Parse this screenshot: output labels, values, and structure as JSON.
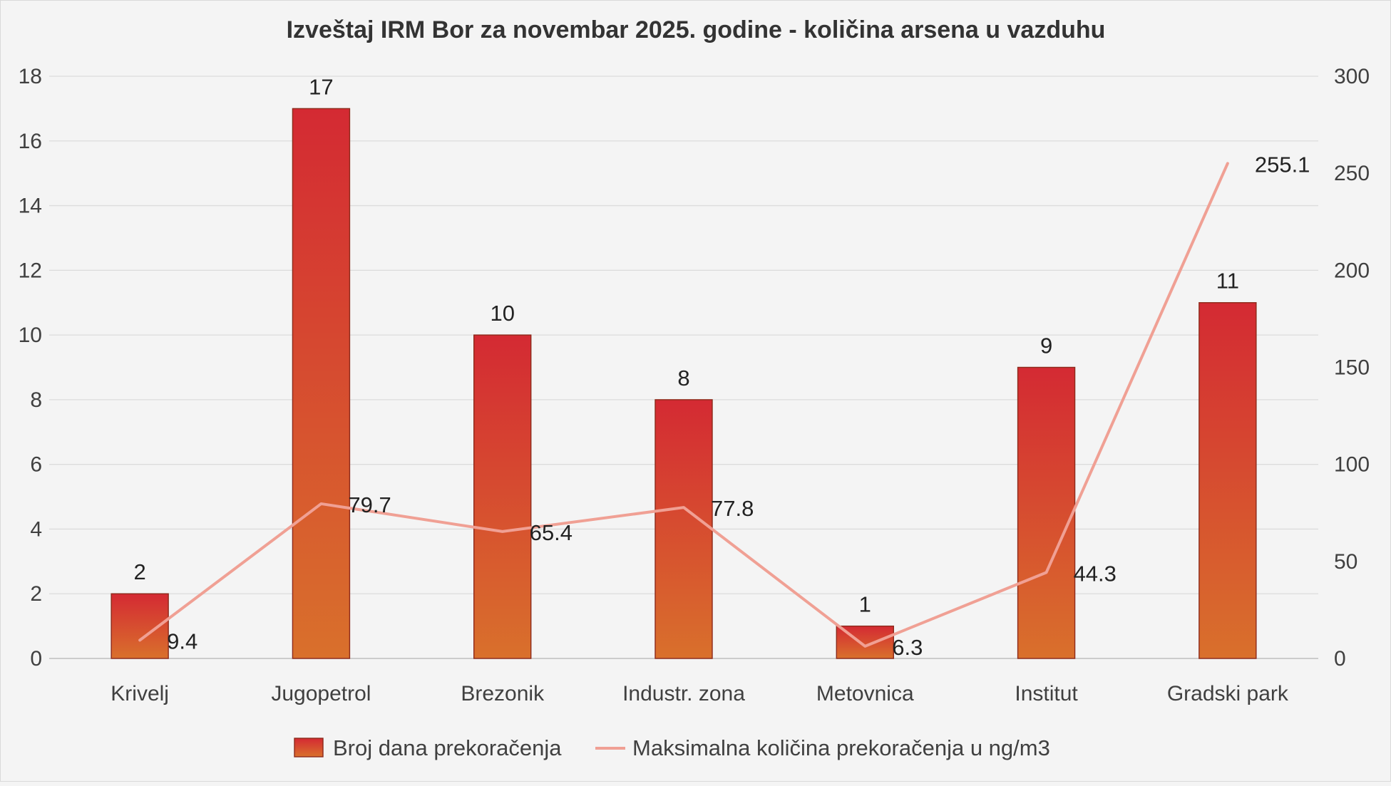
{
  "chart_data": {
    "type": "bar+line",
    "title": "Izveštaj IRM Bor za novembar 2025. godine - količina arsena u vazduhu",
    "categories": [
      "Krivelj",
      "Jugopetrol",
      "Brezonik",
      "Industr. zona",
      "Metovnica",
      "Institut",
      "Gradski park"
    ],
    "series": [
      {
        "name": "Broj dana prekoračenja",
        "type": "bar",
        "axis": "left",
        "values": [
          2,
          17,
          10,
          8,
          1,
          9,
          11
        ],
        "labels": [
          "2",
          "17",
          "10",
          "8",
          "1",
          "9",
          "11"
        ]
      },
      {
        "name": "Maksimalna količina prekoračenja u ng/m3",
        "type": "line",
        "axis": "right",
        "values": [
          9.4,
          79.7,
          65.4,
          77.8,
          6.3,
          44.3,
          255.1
        ],
        "labels": [
          "9.4",
          "79.7",
          "65.4",
          "77.8",
          "6.3",
          "44.3",
          "255.1"
        ]
      }
    ],
    "y_left": {
      "min": 0,
      "max": 18,
      "ticks": [
        "0",
        "2",
        "4",
        "6",
        "8",
        "10",
        "12",
        "14",
        "16",
        "18"
      ]
    },
    "y_right": {
      "min": 0,
      "max": 300,
      "ticks": [
        "0",
        "50",
        "100",
        "150",
        "200",
        "250",
        "300"
      ]
    },
    "grid": true,
    "legend_position": "bottom",
    "colors": {
      "bar_top": "#d42a33",
      "bar_bottom": "#d9702c",
      "bar_border": "#8c2a1b",
      "line": "#f0a094"
    }
  }
}
